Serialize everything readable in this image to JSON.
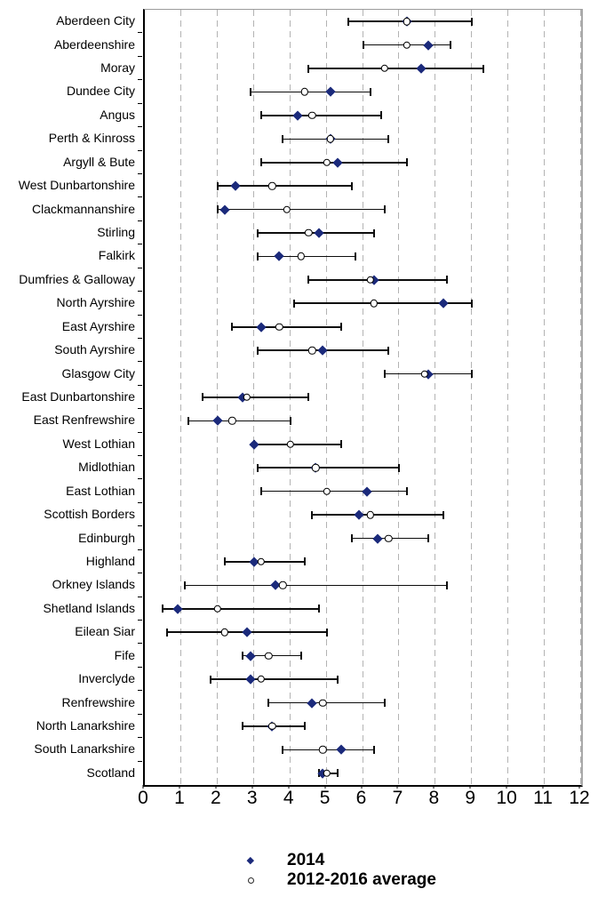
{
  "colors": {
    "diamond_2014": "#1b2a7b",
    "circle_fill": "#ffffff",
    "circle_outline": "#000000",
    "error_bar": "#0d0d0d",
    "gridline": "#b3b3b3",
    "frame": "#9c9c9c",
    "axis": "#000000",
    "text": "#000000"
  },
  "chart_data": {
    "type": "scatter",
    "subtype": "horizontal-dot-plot-with-error-bars",
    "title": "",
    "xlabel": "",
    "ylabel": "",
    "xlim": [
      0,
      12
    ],
    "x_ticks": [
      "0",
      "1",
      "2",
      "3",
      "4",
      "5",
      "6",
      "7",
      "8",
      "9",
      "10",
      "11",
      "12"
    ],
    "grid": "vertical-dashed",
    "legend_position": "bottom-center",
    "categories": [
      "Aberdeen City",
      "Aberdeenshire",
      "Moray",
      "Dundee City",
      "Angus",
      "Perth & Kinross",
      "Argyll & Bute",
      "West Dunbartonshire",
      "Clackmannanshire",
      "Stirling",
      "Falkirk",
      "Dumfries & Galloway",
      "North Ayrshire",
      "East Ayrshire",
      "South Ayrshire",
      "Glasgow City",
      "East Dunbartonshire",
      "East Renfrewshire",
      "West Lothian",
      "Midlothian",
      "East Lothian",
      "Scottish Borders",
      "Edinburgh",
      "Highland",
      "Orkney Islands",
      "Shetland Islands",
      "Eilean Siar",
      "Fife",
      "Inverclyde",
      "Renfrewshire",
      "North Lanarkshire",
      "South Lanarkshire",
      "Scotland"
    ],
    "series": [
      {
        "name": "2014",
        "marker": "filled-diamond",
        "color": "#1b2a7b",
        "values": [
          7.2,
          7.8,
          7.6,
          5.1,
          4.2,
          5.1,
          5.3,
          2.5,
          2.2,
          4.8,
          3.7,
          6.3,
          8.2,
          3.2,
          4.9,
          7.8,
          2.7,
          2.0,
          3.0,
          4.7,
          6.1,
          5.9,
          6.4,
          3.0,
          3.6,
          0.9,
          2.8,
          2.9,
          2.9,
          4.6,
          3.5,
          5.4,
          4.9
        ]
      },
      {
        "name": "2012-2016 average",
        "marker": "open-circle",
        "color": "#ffffff",
        "outline": "#000000",
        "values": [
          7.2,
          7.2,
          6.6,
          4.4,
          4.6,
          5.1,
          5.0,
          3.5,
          3.9,
          4.5,
          4.3,
          6.2,
          6.3,
          3.7,
          4.6,
          7.7,
          2.8,
          2.4,
          4.0,
          4.7,
          5.0,
          6.2,
          6.7,
          3.2,
          3.8,
          2.0,
          2.2,
          3.4,
          3.2,
          4.9,
          3.5,
          4.9,
          5.0
        ]
      }
    ],
    "error_bars": {
      "applies_to": "2012-2016 average",
      "low": [
        5.6,
        6.0,
        4.5,
        2.9,
        3.2,
        3.8,
        3.2,
        2.0,
        2.0,
        3.1,
        3.1,
        4.5,
        4.1,
        2.4,
        3.1,
        6.6,
        1.6,
        1.2,
        3.0,
        3.1,
        3.2,
        4.6,
        5.7,
        2.2,
        1.1,
        0.5,
        0.6,
        2.7,
        1.8,
        3.4,
        2.7,
        3.8,
        4.8
      ],
      "high": [
        9.0,
        8.4,
        9.3,
        6.2,
        6.5,
        6.7,
        7.2,
        5.7,
        6.6,
        6.3,
        5.8,
        8.3,
        9.0,
        5.4,
        6.7,
        9.0,
        4.5,
        4.0,
        5.4,
        7.0,
        7.2,
        8.2,
        7.8,
        4.4,
        8.3,
        4.8,
        5.0,
        4.3,
        5.3,
        6.6,
        4.4,
        6.3,
        5.3
      ]
    }
  },
  "legend": {
    "items": [
      {
        "label": "2014",
        "marker": "filled-diamond"
      },
      {
        "label": "2012-2016 average",
        "marker": "open-circle"
      }
    ]
  }
}
